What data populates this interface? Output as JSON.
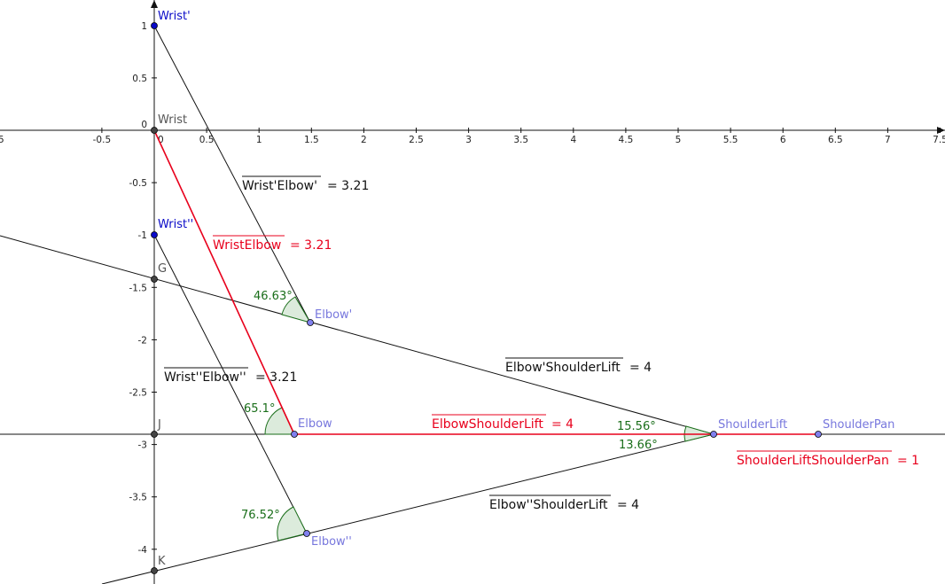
{
  "x_axis_ticks": [
    "-0.5",
    "0",
    "0.5",
    "1",
    "1.5",
    "2",
    "2.5",
    "3",
    "3.5",
    "4",
    "4.5",
    "5",
    "5.5",
    "6",
    "6.5",
    "7",
    "7.5"
  ],
  "y_axis_ticks": [
    "1",
    "0.5",
    "0",
    "-0.5",
    "-1",
    "-1.5",
    "-2",
    "-2.5",
    "-3",
    "-3.5",
    "-4"
  ],
  "colors": {
    "red": "#e8001c",
    "black": "#111111",
    "blue_point": "#0a0ac8",
    "free_point_label": "#7777dd",
    "gray_point": "#555555",
    "angle_green": "#1a6e1a",
    "angle_fill": "#dcebdc"
  },
  "points": {
    "wrist_prime": "Wrist'",
    "wrist": "Wrist",
    "wrist_double_prime": "Wrist''",
    "g": "G",
    "j": "J",
    "k": "K",
    "elbow_prime": "Elbow'",
    "elbow": "Elbow",
    "elbow_double_prime": "Elbow''",
    "shoulder_lift": "ShoulderLift",
    "shoulder_pan": "ShoulderPan"
  },
  "measures": {
    "wrist_prime_elbow_prime": {
      "name": "Wrist'Elbow'",
      "value": "= 3.21"
    },
    "wrist_elbow": {
      "name": "WristElbow",
      "value": "= 3.21"
    },
    "wrist_double_elbow_double": {
      "name": "Wrist''Elbow''",
      "value": "= 3.21"
    },
    "elbow_prime_shoulder": {
      "name": "Elbow'ShoulderLift",
      "value": "= 4"
    },
    "elbow_shoulder": {
      "name": "ElbowShoulderLift",
      "value": "= 4"
    },
    "elbow_double_shoulder": {
      "name": "Elbow''ShoulderLift",
      "value": "= 4"
    },
    "shoulder_pan_segment": {
      "name": "ShoulderLiftShoulderPan",
      "value": "= 1"
    }
  },
  "angles": {
    "at_elbow_prime": "46.63°",
    "at_elbow": "65.1°",
    "at_elbow_double_prime": "76.52°",
    "upper_at_shoulder": "15.56°",
    "lower_at_shoulder": "13.66°"
  }
}
